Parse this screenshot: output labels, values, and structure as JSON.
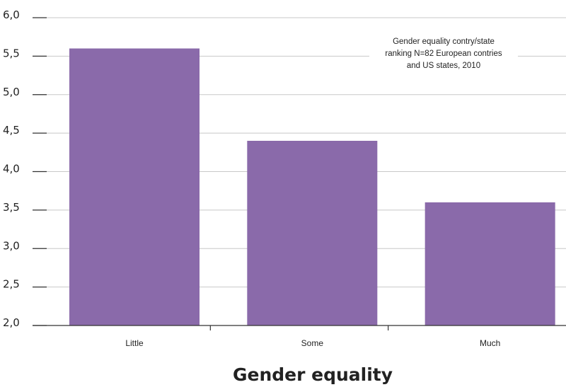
{
  "chart_data": {
    "type": "bar",
    "categories": [
      "Little",
      "Some",
      "Much"
    ],
    "values": [
      5.6,
      4.4,
      3.6
    ],
    "yticks": [
      "2,0",
      "2,5",
      "3,0",
      "3,5",
      "4,0",
      "4,5",
      "5,0",
      "5,5",
      "6,0"
    ],
    "ylim": [
      2.0,
      6.0
    ],
    "ytick_step": 0.5,
    "xlabel": "Gender equality",
    "annotation": [
      "Gender equality contry/state",
      "ranking N=82 European contries",
      "and US states, 2010"
    ],
    "grid": true,
    "bar_color": "#8a6aaa"
  }
}
